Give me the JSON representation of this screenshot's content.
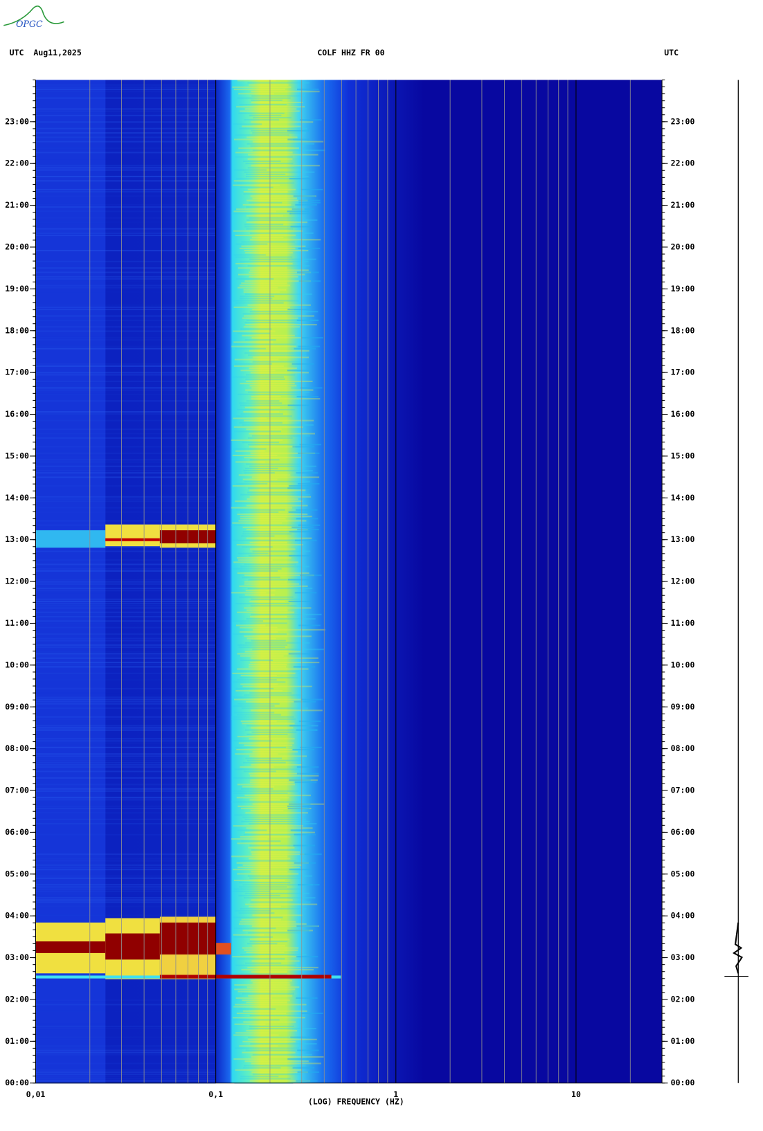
{
  "logo": "OPGC",
  "chart_data": {
    "type": "spectrogram",
    "header_left": "UTC  Aug11,2025",
    "title": "COLF HHZ FR 00",
    "header_right": "UTC",
    "xlabel": "(LOG) FREQUENCY (HZ)",
    "xscale": "log",
    "minor_grid": true,
    "xlim": [
      0.01,
      30
    ],
    "xticks": [
      {
        "value": 0.01,
        "label": "0,01"
      },
      {
        "value": 0.1,
        "label": "0,1"
      },
      1,
      10
    ],
    "ylim": [
      0,
      24
    ],
    "yticks": [
      {
        "value": 0,
        "label": "00:00"
      },
      {
        "value": 1,
        "label": "01:00"
      },
      {
        "value": 2,
        "label": "02:00"
      },
      {
        "value": 3,
        "label": "03:00"
      },
      {
        "value": 4,
        "label": "04:00"
      },
      {
        "value": 5,
        "label": "05:00"
      },
      {
        "value": 6,
        "label": "06:00"
      },
      {
        "value": 7,
        "label": "07:00"
      },
      {
        "value": 8,
        "label": "08:00"
      },
      {
        "value": 9,
        "label": "09:00"
      },
      {
        "value": 10,
        "label": "10:00"
      },
      {
        "value": 11,
        "label": "11:00"
      },
      {
        "value": 12,
        "label": "12:00"
      },
      {
        "value": 13,
        "label": "13:00"
      },
      {
        "value": 14,
        "label": "14:00"
      },
      {
        "value": 15,
        "label": "15:00"
      },
      {
        "value": 16,
        "label": "16:00"
      },
      {
        "value": 17,
        "label": "17:00"
      },
      {
        "value": 18,
        "label": "18:00"
      },
      {
        "value": 19,
        "label": "19:00"
      },
      {
        "value": 20,
        "label": "20:00"
      },
      {
        "value": 21,
        "label": "21:00"
      },
      {
        "value": 22,
        "label": "22:00"
      },
      {
        "value": 23,
        "label": "23:00"
      }
    ]
  }
}
